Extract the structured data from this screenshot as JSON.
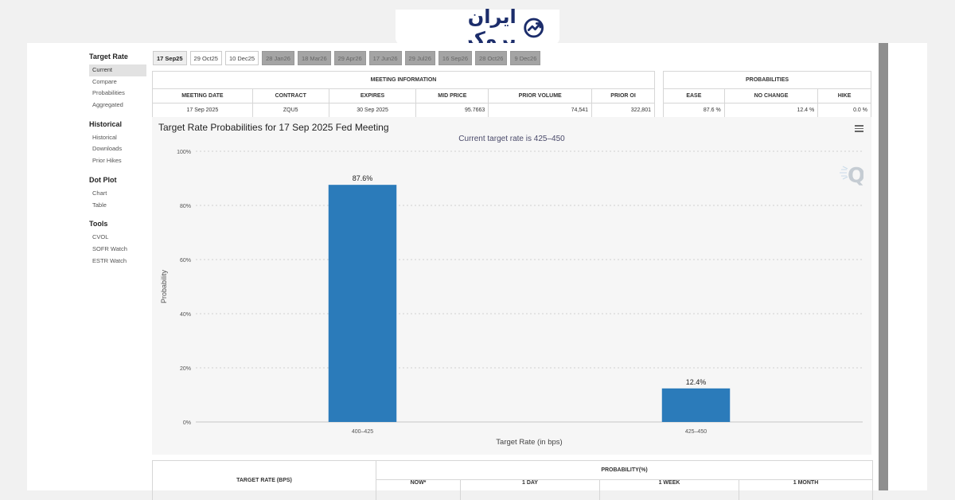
{
  "brand": {
    "name": "ایران بروکر"
  },
  "sidebar": {
    "groups": [
      {
        "title": "Target Rate",
        "items": [
          "Current",
          "Compare",
          "Probabilities",
          "Aggregated"
        ]
      },
      {
        "title": "Historical",
        "items": [
          "Historical",
          "Downloads",
          "Prior Hikes"
        ]
      },
      {
        "title": "Dot Plot",
        "items": [
          "Chart",
          "Table"
        ]
      },
      {
        "title": "Tools",
        "items": [
          "CVOL",
          "SOFR Watch",
          "ESTR Watch"
        ]
      }
    ],
    "active_item": "Current"
  },
  "tabs": [
    "17 Sep25",
    "29 Oct25",
    "10 Dec25",
    "28 Jan26",
    "18 Mar26",
    "29 Apr26",
    "17 Jun26",
    "29 Jul26",
    "16 Sep26",
    "28 Oct26",
    "9 Dec26"
  ],
  "meeting_info": {
    "caption": "MEETING INFORMATION",
    "headers": [
      "MEETING DATE",
      "CONTRACT",
      "EXPIRES",
      "MID PRICE",
      "PRIOR VOLUME",
      "PRIOR OI"
    ],
    "row": [
      "17 Sep 2025",
      "ZQU5",
      "30 Sep 2025",
      "95.7663",
      "74,541",
      "322,801"
    ]
  },
  "probabilities": {
    "caption": "PROBABILITIES",
    "headers": [
      "EASE",
      "NO CHANGE",
      "HIKE"
    ],
    "row": [
      "87.6 %",
      "12.4 %",
      "0.0 %"
    ]
  },
  "chart": {
    "title": "Target Rate Probabilities for 17 Sep 2025 Fed Meeting",
    "subtitle": "Current target rate is 425–450",
    "bar_color": "#2b7bba"
  },
  "chart_data": {
    "type": "bar",
    "categories": [
      "400–425",
      "425–450"
    ],
    "values": [
      87.6,
      12.4
    ],
    "data_labels": [
      "87.6%",
      "12.4%"
    ],
    "xlabel": "Target Rate (in bps)",
    "ylabel": "Probability",
    "ylim": [
      0,
      100
    ],
    "yticks": [
      "0%",
      "20%",
      "40%",
      "60%",
      "80%",
      "100%"
    ],
    "grid": true
  },
  "bottom_table": {
    "left_header": "TARGET RATE (BPS)",
    "right_header": "PROBABILITY(%)",
    "sub_headers": [
      "NOW*",
      "1 DAY",
      "1 WEEK",
      "1 MONTH"
    ]
  }
}
